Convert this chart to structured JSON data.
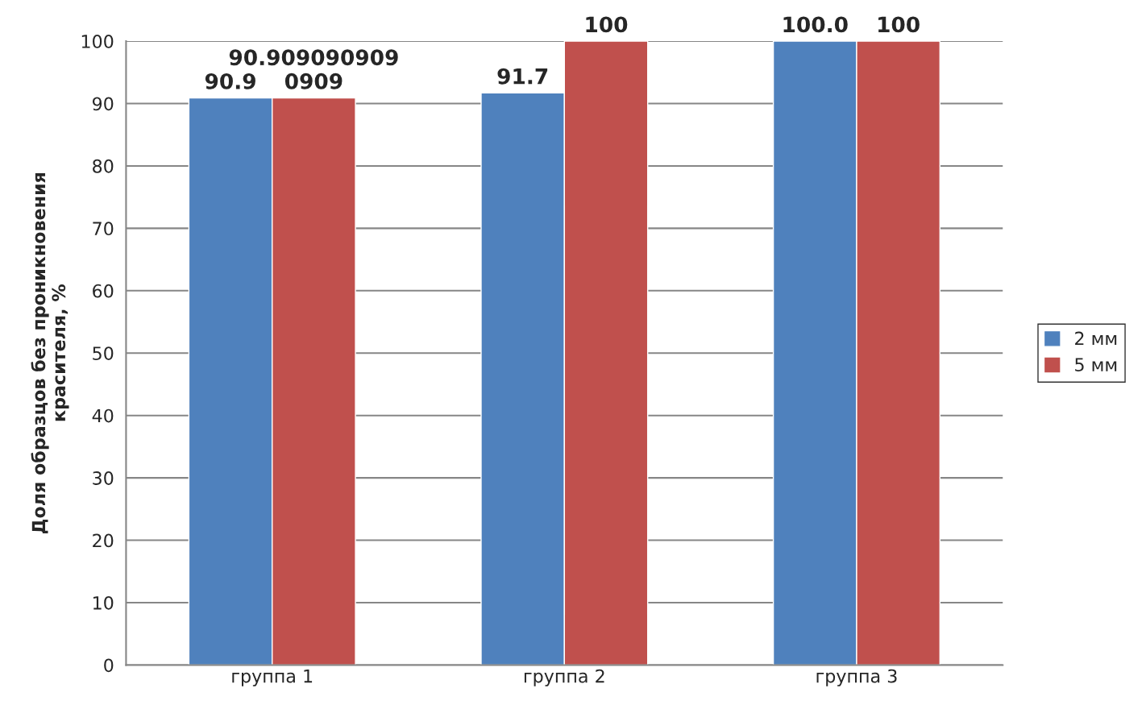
{
  "chart_data": {
    "type": "bar",
    "ylabel": "Доля образцов без проникновения\nкрасителя, %",
    "categories": [
      "группа 1",
      "группа 2",
      "группа 3"
    ],
    "series": [
      {
        "name": "2 мм",
        "color": "#4f81bd",
        "values": [
          90.9,
          91.7,
          100
        ],
        "value_labels": [
          "90.9",
          "91.7",
          "100.0"
        ]
      },
      {
        "name": "5 мм",
        "color": "#c0504d",
        "values": [
          90.9090909090909,
          100,
          100
        ],
        "value_labels": [
          "90.909090909\n0909",
          "100",
          "100"
        ]
      }
    ],
    "ylim": [
      0,
      100
    ],
    "yticks": [
      0,
      10,
      20,
      30,
      40,
      50,
      60,
      70,
      80,
      90,
      100
    ],
    "grid": "y",
    "legend": "right"
  }
}
